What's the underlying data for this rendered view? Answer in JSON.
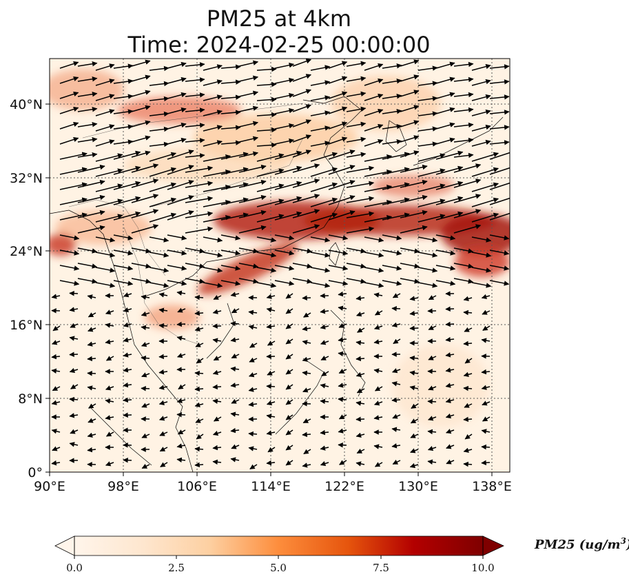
{
  "title": {
    "line1": "PM25 at 4km",
    "line2": "Time: 2024-02-25 00:00:00"
  },
  "map": {
    "lon_range": [
      90,
      140
    ],
    "lat_range": [
      0,
      45
    ],
    "lon_ticks": [
      "90°E",
      "98°E",
      "106°E",
      "114°E",
      "122°E",
      "130°E",
      "138°E"
    ],
    "lat_ticks": [
      "0°",
      "8°N",
      "16°N",
      "24°N",
      "32°N",
      "40°N"
    ],
    "gridlines": "dotted",
    "field": "PM25",
    "wind_vectors": true
  },
  "colorbar": {
    "label_main": "PM25 (ug/m",
    "label_sup": "3",
    "label_end": ")",
    "ticks": [
      "0.0",
      "2.5",
      "5.0",
      "7.5",
      "10.0"
    ],
    "range": [
      0,
      10
    ],
    "colormap": [
      "#fff5eb",
      "#fdd8b0",
      "#fdab67",
      "#f16913",
      "#d7301f",
      "#a50f15",
      "#67000d"
    ],
    "extend": "both"
  }
}
